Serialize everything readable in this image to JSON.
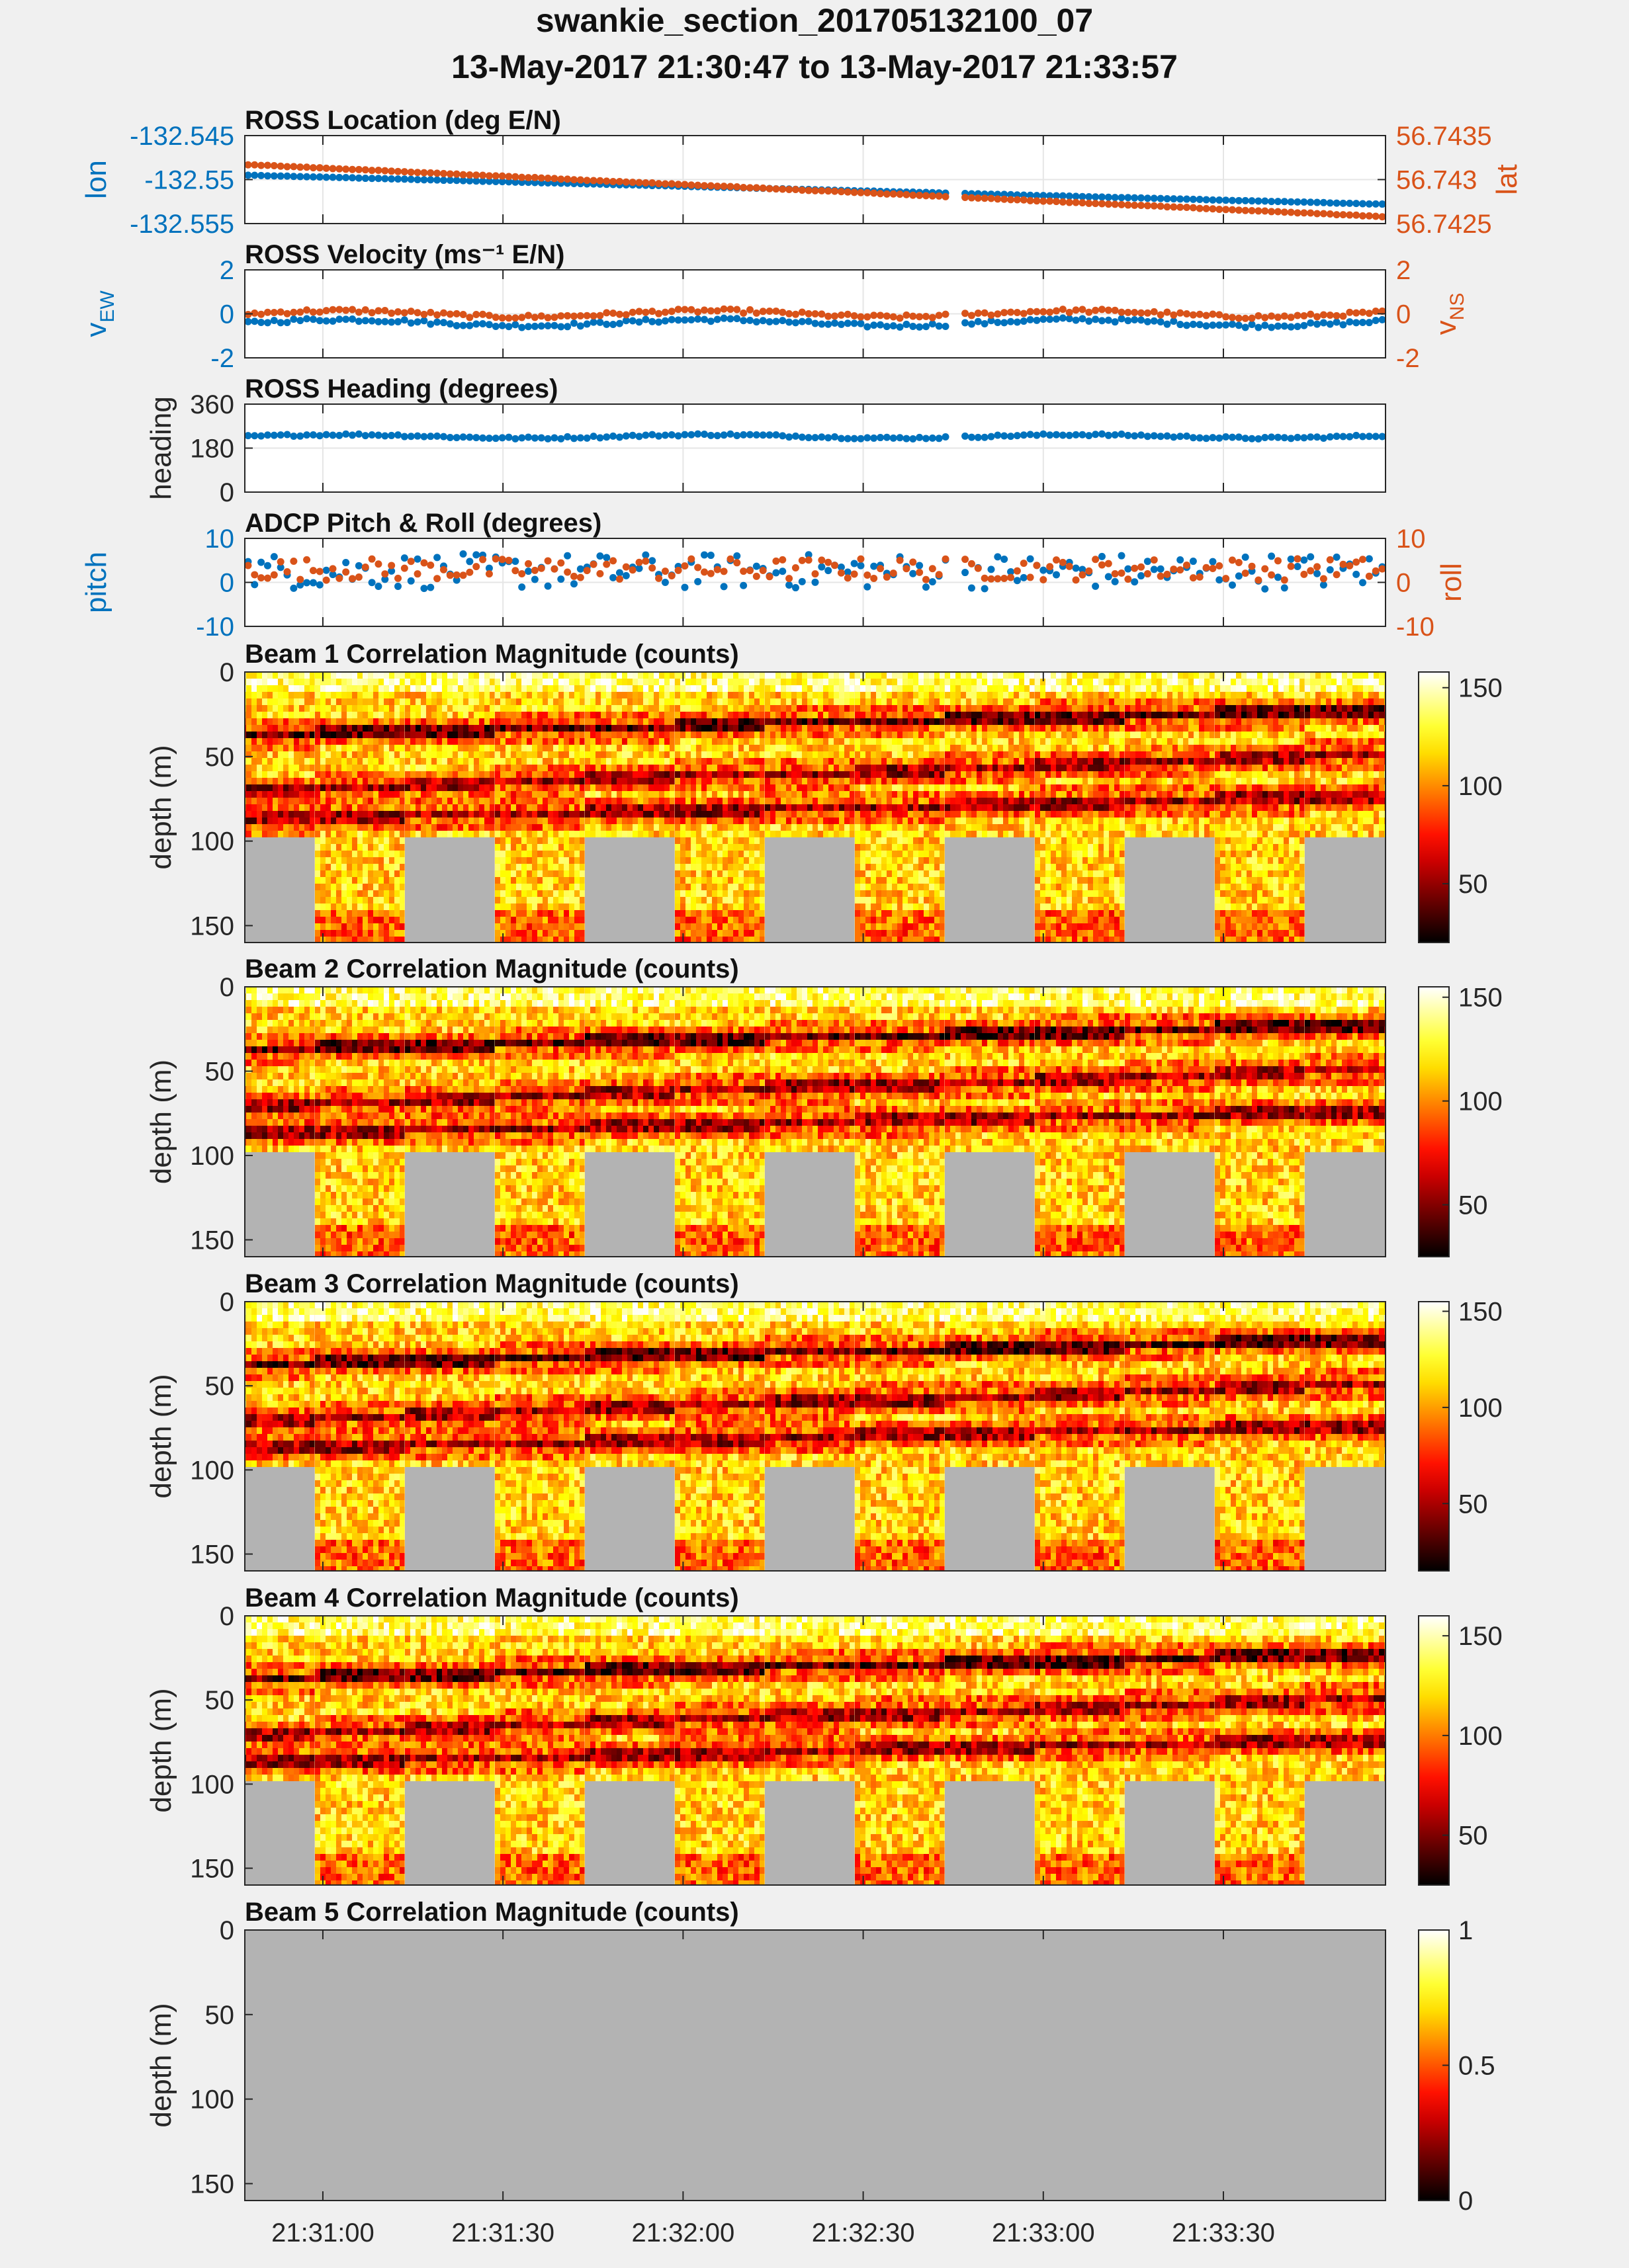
{
  "figure": {
    "title_line1": "swankie_section_201705132100_07",
    "title_line2": "13-May-2017 21:30:47 to 13-May-2017 21:33:57"
  },
  "colors": {
    "blue": "#0072BD",
    "orange": "#D95319",
    "nan_gray": "#b3b3b3",
    "background": "#f0f0f0"
  },
  "time_axis": {
    "start": "21:30:47",
    "end": "21:33:57",
    "ticks": [
      "21:31:00",
      "21:31:30",
      "21:32:00",
      "21:32:30",
      "21:33:00",
      "21:33:30"
    ],
    "tick_seconds": [
      13,
      43,
      73,
      103,
      133,
      163
    ],
    "range_seconds": [
      0,
      190
    ]
  },
  "chart_data": [
    {
      "id": "location",
      "type": "scatter",
      "title": "ROSS Location (deg E/N)",
      "left_axis": {
        "label": "lon",
        "ticks": [
          "-132.545",
          "-132.55",
          "-132.555"
        ],
        "ylim": [
          -132.555,
          -132.545
        ]
      },
      "right_axis": {
        "label": "lat",
        "ticks": [
          "56.7435",
          "56.743",
          "56.7425"
        ],
        "ylim": [
          56.7425,
          56.7435
        ]
      },
      "series": [
        {
          "name": "lon",
          "axis": "left",
          "color": "#0072BD",
          "x_range_seconds": [
            0,
            190
          ],
          "y_start": -132.5495,
          "y_end": -132.5528
        },
        {
          "name": "lat",
          "axis": "right",
          "color": "#D95319",
          "x_range_seconds": [
            0,
            190
          ],
          "y_start": 56.74317,
          "y_end": 56.74258
        }
      ],
      "grid": true
    },
    {
      "id": "velocity",
      "type": "scatter",
      "title": "ROSS Velocity (ms⁻¹ E/N)",
      "left_axis": {
        "label": "v_EW",
        "ticks": [
          "2",
          "0",
          "-2"
        ],
        "ylim": [
          -2.5,
          2.5
        ]
      },
      "right_axis": {
        "label": "v_NS",
        "ticks": [
          "2",
          "0",
          "-2"
        ],
        "ylim": [
          -2.5,
          2.5
        ]
      },
      "series": [
        {
          "name": "v_EW",
          "axis": "left",
          "color": "#0072BD",
          "mean": -0.5
        },
        {
          "name": "v_NS",
          "axis": "right",
          "color": "#D95319",
          "mean": 0.0
        }
      ],
      "grid": true
    },
    {
      "id": "heading",
      "type": "scatter",
      "title": "ROSS Heading (degrees)",
      "left_axis": {
        "label": "heading",
        "ticks": [
          "360",
          "180",
          "0"
        ],
        "ylim": [
          0,
          360
        ]
      },
      "series": [
        {
          "name": "heading",
          "axis": "left",
          "color": "#0072BD",
          "mean": 228
        }
      ],
      "grid": true
    },
    {
      "id": "pitchroll",
      "type": "scatter",
      "title": "ADCP Pitch & Roll (degrees)",
      "left_axis": {
        "label": "pitch",
        "ticks": [
          "10",
          "0",
          "-10"
        ],
        "ylim": [
          -10,
          10
        ]
      },
      "right_axis": {
        "label": "roll",
        "ticks": [
          "10",
          "0",
          "-10"
        ],
        "ylim": [
          -10,
          10
        ]
      },
      "series": [
        {
          "name": "pitch",
          "axis": "left",
          "color": "#0072BD",
          "mean": 2.5,
          "spread": 4
        },
        {
          "name": "roll",
          "axis": "right",
          "color": "#D95319",
          "mean": 3,
          "spread": 2.5
        }
      ],
      "grid": true
    },
    {
      "id": "beam1",
      "type": "heatmap",
      "title": "Beam 1 Correlation Magnitude (counts)",
      "ylabel": "depth (m)",
      "yticks": [
        "0",
        "50",
        "100",
        "150"
      ],
      "ylim": [
        0,
        160
      ],
      "colorbar": {
        "ticks": [
          "150",
          "100",
          "50"
        ],
        "tick_values": [
          150,
          100,
          50
        ],
        "clim": [
          20,
          158
        ]
      },
      "nan_below_depth": 95
    },
    {
      "id": "beam2",
      "type": "heatmap",
      "title": "Beam 2 Correlation Magnitude (counts)",
      "ylabel": "depth (m)",
      "yticks": [
        "0",
        "50",
        "100",
        "150"
      ],
      "ylim": [
        0,
        160
      ],
      "colorbar": {
        "ticks": [
          "150",
          "100",
          "50"
        ],
        "tick_values": [
          150,
          100,
          50
        ],
        "clim": [
          25,
          155
        ]
      },
      "nan_below_depth": 95
    },
    {
      "id": "beam3",
      "type": "heatmap",
      "title": "Beam 3 Correlation Magnitude (counts)",
      "ylabel": "depth (m)",
      "yticks": [
        "0",
        "50",
        "100",
        "150"
      ],
      "ylim": [
        0,
        160
      ],
      "colorbar": {
        "ticks": [
          "150",
          "100",
          "50"
        ],
        "tick_values": [
          150,
          100,
          50
        ],
        "clim": [
          15,
          155
        ]
      },
      "nan_below_depth": 95
    },
    {
      "id": "beam4",
      "type": "heatmap",
      "title": "Beam 4 Correlation Magnitude (counts)",
      "ylabel": "depth (m)",
      "yticks": [
        "0",
        "50",
        "100",
        "150"
      ],
      "ylim": [
        0,
        160
      ],
      "colorbar": {
        "ticks": [
          "150",
          "100",
          "50"
        ],
        "tick_values": [
          150,
          100,
          50
        ],
        "clim": [
          25,
          160
        ]
      },
      "nan_below_depth": 95
    },
    {
      "id": "beam5",
      "type": "heatmap",
      "title": "Beam 5 Correlation Magnitude (counts)",
      "ylabel": "depth (m)",
      "yticks": [
        "0",
        "50",
        "100",
        "150"
      ],
      "ylim": [
        0,
        160
      ],
      "colorbar": {
        "ticks": [
          "1",
          "0.5",
          "0"
        ],
        "tick_values": [
          1,
          0.5,
          0
        ],
        "clim": [
          0,
          1
        ]
      },
      "all_nan": true
    }
  ]
}
